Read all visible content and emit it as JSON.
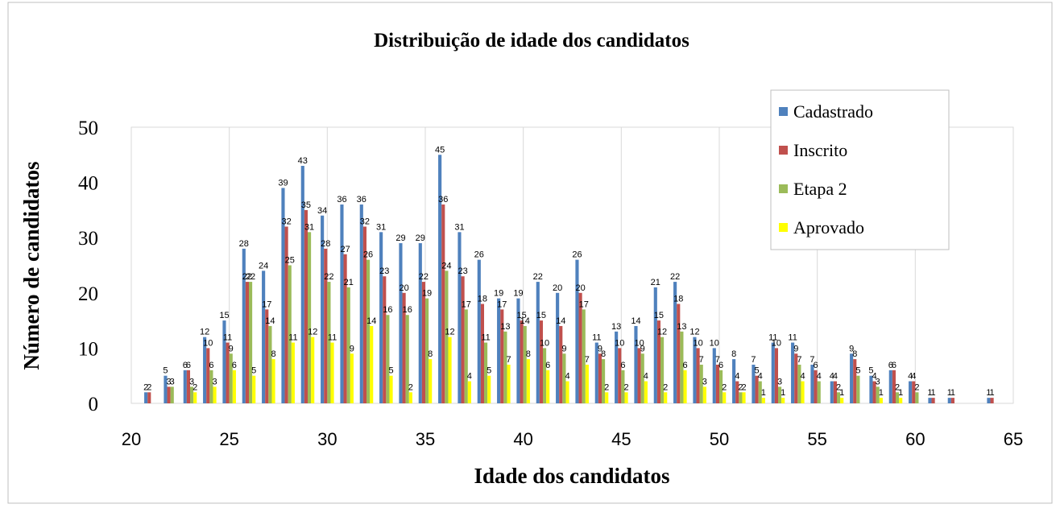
{
  "chart_data": {
    "type": "bar",
    "title": "Distribuição de idade dos candidatos",
    "x_label": "Idade dos candidatos",
    "y_label": "Número de candidatos",
    "x": [
      21,
      22,
      23,
      24,
      25,
      26,
      27,
      28,
      29,
      30,
      31,
      32,
      33,
      34,
      35,
      36,
      37,
      38,
      39,
      40,
      41,
      42,
      43,
      44,
      45,
      46,
      47,
      48,
      49,
      50,
      51,
      52,
      53,
      54,
      55,
      56,
      57,
      58,
      59,
      60,
      61,
      62,
      63,
      64
    ],
    "series": [
      {
        "name": "Cadastrado",
        "color": "#4f81bd",
        "values": [
          2,
          5,
          6,
          12,
          15,
          28,
          24,
          39,
          43,
          34,
          36,
          36,
          31,
          29,
          29,
          45,
          31,
          26,
          19,
          19,
          22,
          20,
          26,
          11,
          13,
          14,
          21,
          22,
          12,
          10,
          8,
          7,
          11,
          11,
          7,
          4,
          9,
          5,
          6,
          4,
          1,
          1,
          null,
          1
        ]
      },
      {
        "name": "Inscrito",
        "color": "#c0504d",
        "values": [
          2,
          3,
          6,
          10,
          11,
          22,
          17,
          32,
          35,
          28,
          27,
          32,
          23,
          20,
          22,
          36,
          23,
          18,
          17,
          15,
          15,
          14,
          20,
          9,
          10,
          10,
          15,
          18,
          10,
          7,
          4,
          5,
          10,
          9,
          6,
          4,
          8,
          4,
          6,
          4,
          1,
          1,
          null,
          1
        ]
      },
      {
        "name": "Etapa 2",
        "color": "#9bbb59",
        "values": [
          null,
          3,
          3,
          6,
          9,
          22,
          14,
          25,
          31,
          22,
          21,
          26,
          16,
          16,
          19,
          24,
          17,
          11,
          13,
          14,
          10,
          9,
          17,
          8,
          6,
          9,
          12,
          13,
          7,
          6,
          2,
          4,
          3,
          7,
          4,
          2,
          5,
          3,
          2,
          2,
          null,
          null,
          null,
          null
        ]
      },
      {
        "name": "Aprovado",
        "color": "#ffff00",
        "values": [
          null,
          null,
          2,
          3,
          6,
          5,
          8,
          11,
          12,
          11,
          9,
          14,
          5,
          2,
          8,
          12,
          4,
          5,
          7,
          8,
          6,
          4,
          7,
          2,
          2,
          4,
          2,
          6,
          3,
          2,
          2,
          1,
          1,
          4,
          null,
          1,
          null,
          1,
          1,
          null,
          null,
          null,
          null,
          null
        ]
      }
    ],
    "xlim": [
      20,
      65
    ],
    "xticks": [
      20,
      25,
      30,
      35,
      40,
      45,
      50,
      55,
      60,
      65
    ],
    "ylim": [
      0,
      50
    ],
    "yticks": [
      0,
      10,
      20,
      30,
      40,
      50
    ],
    "grid": true,
    "legend": "top-right"
  }
}
